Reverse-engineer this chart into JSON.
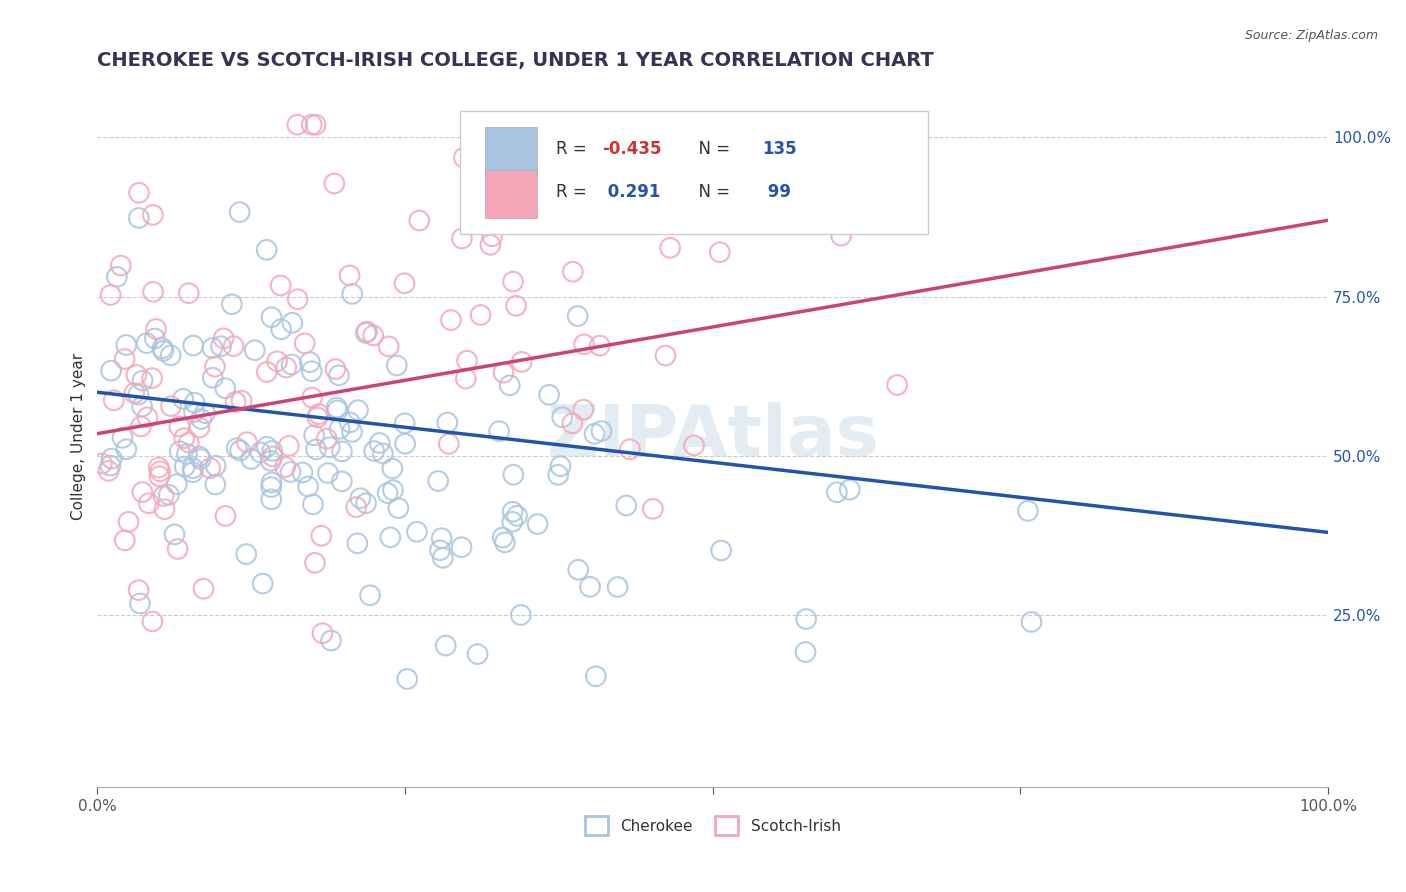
{
  "title": "CHEROKEE VS SCOTCH-IRISH COLLEGE, UNDER 1 YEAR CORRELATION CHART",
  "source_text": "Source: ZipAtlas.com",
  "ylabel": "College, Under 1 year",
  "xlim": [
    0.0,
    1.0
  ],
  "ylim": [
    -0.02,
    1.08
  ],
  "ytick_positions": [
    1.0,
    0.75,
    0.5,
    0.25
  ],
  "cherokee_color": "#a8c4e0",
  "scotch_irish_color": "#f4a7b9",
  "cherokee_line_color": "#2255aa",
  "scotch_irish_line_color": "#cc4477",
  "background_color": "#ffffff",
  "watermark_text": "ZIPAtlas",
  "legend_r_cherokee": "-0.435",
  "legend_n_cherokee": "135",
  "legend_r_scotch": "0.291",
  "legend_n_scotch": "99",
  "cherokee_R": -0.435,
  "cherokee_N": 135,
  "scotch_R": 0.291,
  "scotch_N": 99,
  "cherokee_trend_x": [
    0.0,
    1.0
  ],
  "cherokee_trend_y": [
    0.6,
    0.38
  ],
  "scotch_trend_x": [
    0.0,
    1.0
  ],
  "scotch_trend_y": [
    0.535,
    0.87
  ],
  "title_fontsize": 14,
  "axis_label_fontsize": 11,
  "tick_fontsize": 11
}
